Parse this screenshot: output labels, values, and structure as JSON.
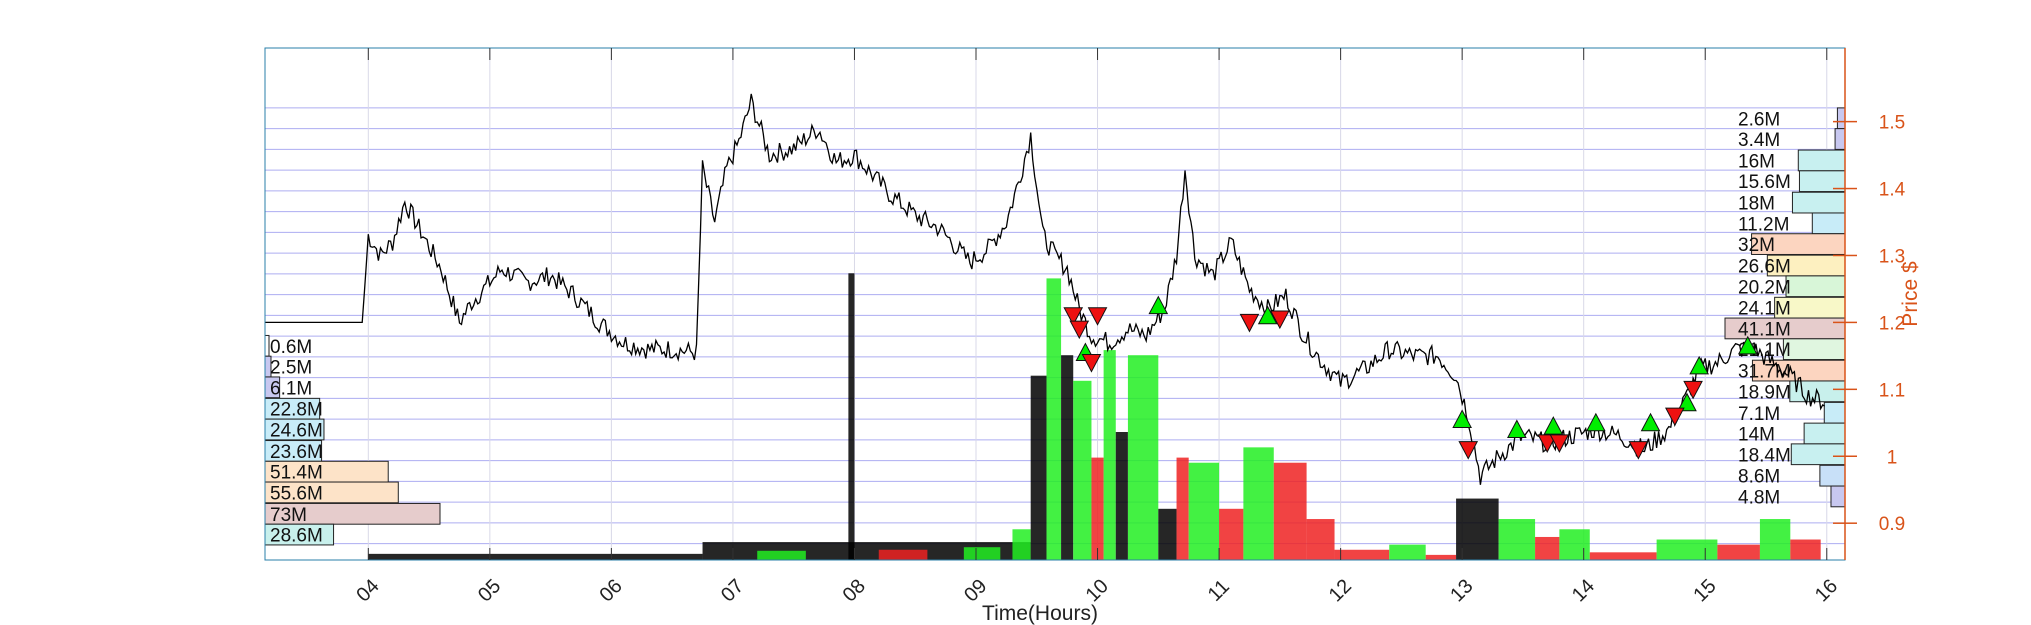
{
  "chart_data": {
    "type": "line",
    "xlabel": "Time(Hours)",
    "ylabel": "Price $",
    "xlim": [
      3.15,
      16.15
    ],
    "ylim": [
      0.845,
      1.61
    ],
    "x_ticks": [
      4,
      5,
      6,
      7,
      8,
      9,
      10,
      11,
      12,
      13,
      14,
      15,
      16
    ],
    "x_tick_labels": [
      "04",
      "05",
      "06",
      "07",
      "08",
      "09",
      "10",
      "11",
      "12",
      "13",
      "14",
      "15",
      "16"
    ],
    "y_ticks": [
      0.9,
      1.0,
      1.1,
      1.2,
      1.3,
      1.4,
      1.5
    ],
    "y_tick_labels": [
      "0.9",
      "1",
      "1.1",
      "1.2",
      "1.3",
      "1.4",
      "1.5"
    ],
    "grid": true,
    "colors": {
      "price_line": "#000000",
      "price_axis": "#d95319",
      "grid": "#9999ee",
      "buy_marker": "#00ee00",
      "sell_marker": "#ee1111",
      "volume_up": "#22ee22",
      "volume_down": "#ee2222",
      "volume_base": "#000000"
    },
    "price_series": [
      [
        3.15,
        1.2
      ],
      [
        3.95,
        1.2
      ],
      [
        4.0,
        1.33
      ],
      [
        4.1,
        1.3
      ],
      [
        4.2,
        1.32
      ],
      [
        4.3,
        1.38
      ],
      [
        4.45,
        1.33
      ],
      [
        4.6,
        1.28
      ],
      [
        4.75,
        1.2
      ],
      [
        4.85,
        1.23
      ],
      [
        5.0,
        1.26
      ],
      [
        5.1,
        1.28
      ],
      [
        5.3,
        1.26
      ],
      [
        5.5,
        1.27
      ],
      [
        5.7,
        1.24
      ],
      [
        5.9,
        1.2
      ],
      [
        6.1,
        1.17
      ],
      [
        6.3,
        1.16
      ],
      [
        6.5,
        1.16
      ],
      [
        6.7,
        1.155
      ],
      [
        6.75,
        1.43
      ],
      [
        6.85,
        1.35
      ],
      [
        6.95,
        1.43
      ],
      [
        7.05,
        1.47
      ],
      [
        7.15,
        1.53
      ],
      [
        7.3,
        1.45
      ],
      [
        7.5,
        1.46
      ],
      [
        7.7,
        1.49
      ],
      [
        7.85,
        1.44
      ],
      [
        8.0,
        1.45
      ],
      [
        8.15,
        1.42
      ],
      [
        8.3,
        1.39
      ],
      [
        8.5,
        1.36
      ],
      [
        8.7,
        1.34
      ],
      [
        8.85,
        1.31
      ],
      [
        8.95,
        1.29
      ],
      [
        9.1,
        1.31
      ],
      [
        9.25,
        1.35
      ],
      [
        9.35,
        1.41
      ],
      [
        9.45,
        1.48
      ],
      [
        9.55,
        1.33
      ],
      [
        9.65,
        1.3
      ],
      [
        9.75,
        1.28
      ],
      [
        9.85,
        1.22
      ],
      [
        9.95,
        1.18
      ],
      [
        10.1,
        1.17
      ],
      [
        10.25,
        1.19
      ],
      [
        10.4,
        1.18
      ],
      [
        10.55,
        1.22
      ],
      [
        10.65,
        1.3
      ],
      [
        10.72,
        1.43
      ],
      [
        10.8,
        1.3
      ],
      [
        10.95,
        1.27
      ],
      [
        11.1,
        1.32
      ],
      [
        11.25,
        1.25
      ],
      [
        11.4,
        1.22
      ],
      [
        11.55,
        1.24
      ],
      [
        11.7,
        1.18
      ],
      [
        11.85,
        1.14
      ],
      [
        12.0,
        1.11
      ],
      [
        12.2,
        1.13
      ],
      [
        12.4,
        1.16
      ],
      [
        12.6,
        1.15
      ],
      [
        12.8,
        1.15
      ],
      [
        12.95,
        1.12
      ],
      [
        13.05,
        1.06
      ],
      [
        13.15,
        0.97
      ],
      [
        13.3,
        1.0
      ],
      [
        13.5,
        1.03
      ],
      [
        13.7,
        1.02
      ],
      [
        13.9,
        1.03
      ],
      [
        14.1,
        1.04
      ],
      [
        14.3,
        1.03
      ],
      [
        14.5,
        1.01
      ],
      [
        14.7,
        1.04
      ],
      [
        14.85,
        1.09
      ],
      [
        14.95,
        1.13
      ],
      [
        15.1,
        1.14
      ],
      [
        15.25,
        1.16
      ],
      [
        15.4,
        1.16
      ],
      [
        15.55,
        1.14
      ],
      [
        15.7,
        1.12
      ],
      [
        15.85,
        1.09
      ],
      [
        16.0,
        1.08
      ]
    ],
    "buy_markers": [
      [
        9.9,
        1.155
      ],
      [
        10.5,
        1.225
      ],
      [
        11.4,
        1.21
      ],
      [
        13.0,
        1.055
      ],
      [
        13.45,
        1.04
      ],
      [
        13.75,
        1.045
      ],
      [
        14.1,
        1.05
      ],
      [
        14.55,
        1.05
      ],
      [
        14.85,
        1.08
      ],
      [
        14.95,
        1.135
      ],
      [
        15.35,
        1.165
      ]
    ],
    "sell_markers": [
      [
        9.8,
        1.21
      ],
      [
        9.85,
        1.19
      ],
      [
        9.95,
        1.14
      ],
      [
        10.0,
        1.21
      ],
      [
        11.25,
        1.2
      ],
      [
        11.5,
        1.205
      ],
      [
        13.05,
        1.01
      ],
      [
        13.7,
        1.02
      ],
      [
        13.8,
        1.02
      ],
      [
        14.45,
        1.01
      ],
      [
        14.75,
        1.06
      ],
      [
        14.9,
        1.1
      ]
    ],
    "volume_profile_left": [
      {
        "price": 1.165,
        "label": "0.6M",
        "fill": "#ffffff",
        "value": 0.6
      },
      {
        "price": 1.134,
        "label": "2.5M",
        "fill": "#c8c8f0",
        "value": 2.5
      },
      {
        "price": 1.103,
        "label": "6.1M",
        "fill": "#c8c8f0",
        "value": 6.1
      },
      {
        "price": 1.071,
        "label": "22.8M",
        "fill": "#c8ecf8",
        "value": 22.8
      },
      {
        "price": 1.04,
        "label": "24.6M",
        "fill": "#c8ecf8",
        "value": 24.6
      },
      {
        "price": 1.008,
        "label": "23.6M",
        "fill": "#c8ecf8",
        "value": 23.6
      },
      {
        "price": 0.977,
        "label": "51.4M",
        "fill": "#fde3c8",
        "value": 51.4
      },
      {
        "price": 0.946,
        "label": "55.6M",
        "fill": "#fde3c8",
        "value": 55.6
      },
      {
        "price": 0.914,
        "label": "73M",
        "fill": "#e6cccc",
        "value": 73
      },
      {
        "price": 0.883,
        "label": "28.6M",
        "fill": "#c8f0ec",
        "value": 28.6
      }
    ],
    "volume_profile_right": [
      {
        "price": 1.505,
        "label": "2.6M",
        "fill": "#c8c8f0",
        "value": 2.6
      },
      {
        "price": 1.474,
        "label": "3.4M",
        "fill": "#c8c8f0",
        "value": 3.4
      },
      {
        "price": 1.442,
        "label": "16M",
        "fill": "#c8f0f0",
        "value": 16
      },
      {
        "price": 1.411,
        "label": "15.6M",
        "fill": "#c8f0f0",
        "value": 15.6
      },
      {
        "price": 1.379,
        "label": "18M",
        "fill": "#c8f0f0",
        "value": 18
      },
      {
        "price": 1.348,
        "label": "11.2M",
        "fill": "#c8ecf8",
        "value": 11.2
      },
      {
        "price": 1.317,
        "label": "32M",
        "fill": "#fcd5c0",
        "value": 32
      },
      {
        "price": 1.285,
        "label": "26.6M",
        "fill": "#fdf0c0",
        "value": 26.6
      },
      {
        "price": 1.254,
        "label": "20.2M",
        "fill": "#d8f6d8",
        "value": 20.2
      },
      {
        "price": 1.222,
        "label": "24.1M",
        "fill": "#f8f8c8",
        "value": 24.1
      },
      {
        "price": 1.191,
        "label": "41.1M",
        "fill": "#e6cccc",
        "value": 41.1
      },
      {
        "price": 1.16,
        "label": "21.1M",
        "fill": "#e0f6e0",
        "value": 21.1
      },
      {
        "price": 1.128,
        "label": "31.7M",
        "fill": "#fcd5c0",
        "value": 31.7
      },
      {
        "price": 1.097,
        "label": "18.9M",
        "fill": "#c8f0ec",
        "value": 18.9
      },
      {
        "price": 1.065,
        "label": "7.1M",
        "fill": "#c8ecf8",
        "value": 7.1
      },
      {
        "price": 1.034,
        "label": "14M",
        "fill": "#c8f0f0",
        "value": 14
      },
      {
        "price": 1.003,
        "label": "18.4M",
        "fill": "#c8f0f0",
        "value": 18.4
      },
      {
        "price": 0.971,
        "label": "8.6M",
        "fill": "#c8e0f8",
        "value": 8.6
      },
      {
        "price": 0.94,
        "label": "4.8M",
        "fill": "#c8c8f0",
        "value": 4.8
      }
    ],
    "volume_bars": [
      {
        "x0": 4.0,
        "x1": 6.75,
        "h": 0.012,
        "color": "base"
      },
      {
        "x0": 6.75,
        "x1": 9.45,
        "h": 0.035,
        "color": "base"
      },
      {
        "x0": 7.2,
        "x1": 7.6,
        "h": 0.018,
        "color": "up"
      },
      {
        "x0": 8.2,
        "x1": 8.6,
        "h": 0.02,
        "color": "down"
      },
      {
        "x0": 8.9,
        "x1": 9.2,
        "h": 0.025,
        "color": "up"
      },
      {
        "x0": 9.3,
        "x1": 9.45,
        "h": 0.06,
        "color": "up"
      },
      {
        "x0": 9.45,
        "x1": 9.58,
        "h": 0.36,
        "color": "base"
      },
      {
        "x0": 9.58,
        "x1": 9.7,
        "h": 0.55,
        "color": "up"
      },
      {
        "x0": 9.7,
        "x1": 9.8,
        "h": 0.4,
        "color": "base"
      },
      {
        "x0": 9.8,
        "x1": 9.95,
        "h": 0.35,
        "color": "up"
      },
      {
        "x0": 9.95,
        "x1": 10.05,
        "h": 0.2,
        "color": "down"
      },
      {
        "x0": 10.05,
        "x1": 10.15,
        "h": 0.41,
        "color": "up"
      },
      {
        "x0": 10.15,
        "x1": 10.25,
        "h": 0.25,
        "color": "base"
      },
      {
        "x0": 10.25,
        "x1": 10.5,
        "h": 0.4,
        "color": "up"
      },
      {
        "x0": 10.5,
        "x1": 10.65,
        "h": 0.1,
        "color": "base"
      },
      {
        "x0": 10.65,
        "x1": 10.75,
        "h": 0.2,
        "color": "down"
      },
      {
        "x0": 10.75,
        "x1": 11.0,
        "h": 0.19,
        "color": "up"
      },
      {
        "x0": 11.0,
        "x1": 11.2,
        "h": 0.1,
        "color": "down"
      },
      {
        "x0": 11.2,
        "x1": 11.45,
        "h": 0.22,
        "color": "up"
      },
      {
        "x0": 11.45,
        "x1": 11.72,
        "h": 0.19,
        "color": "down"
      },
      {
        "x0": 11.72,
        "x1": 11.95,
        "h": 0.08,
        "color": "down"
      },
      {
        "x0": 11.95,
        "x1": 12.4,
        "h": 0.02,
        "color": "down"
      },
      {
        "x0": 12.4,
        "x1": 12.7,
        "h": 0.03,
        "color": "up"
      },
      {
        "x0": 12.7,
        "x1": 12.95,
        "h": 0.01,
        "color": "down"
      },
      {
        "x0": 12.95,
        "x1": 13.3,
        "h": 0.12,
        "color": "base"
      },
      {
        "x0": 13.3,
        "x1": 13.6,
        "h": 0.08,
        "color": "up"
      },
      {
        "x0": 13.6,
        "x1": 13.8,
        "h": 0.045,
        "color": "down"
      },
      {
        "x0": 13.8,
        "x1": 14.05,
        "h": 0.06,
        "color": "up"
      },
      {
        "x0": 14.05,
        "x1": 14.6,
        "h": 0.015,
        "color": "down"
      },
      {
        "x0": 14.6,
        "x1": 15.1,
        "h": 0.04,
        "color": "up"
      },
      {
        "x0": 15.1,
        "x1": 15.45,
        "h": 0.03,
        "color": "down"
      },
      {
        "x0": 15.45,
        "x1": 15.7,
        "h": 0.08,
        "color": "up"
      },
      {
        "x0": 15.7,
        "x1": 15.95,
        "h": 0.04,
        "color": "down"
      },
      {
        "x0": 7.95,
        "x1": 8.0,
        "h": 0.56,
        "color": "base"
      }
    ]
  }
}
